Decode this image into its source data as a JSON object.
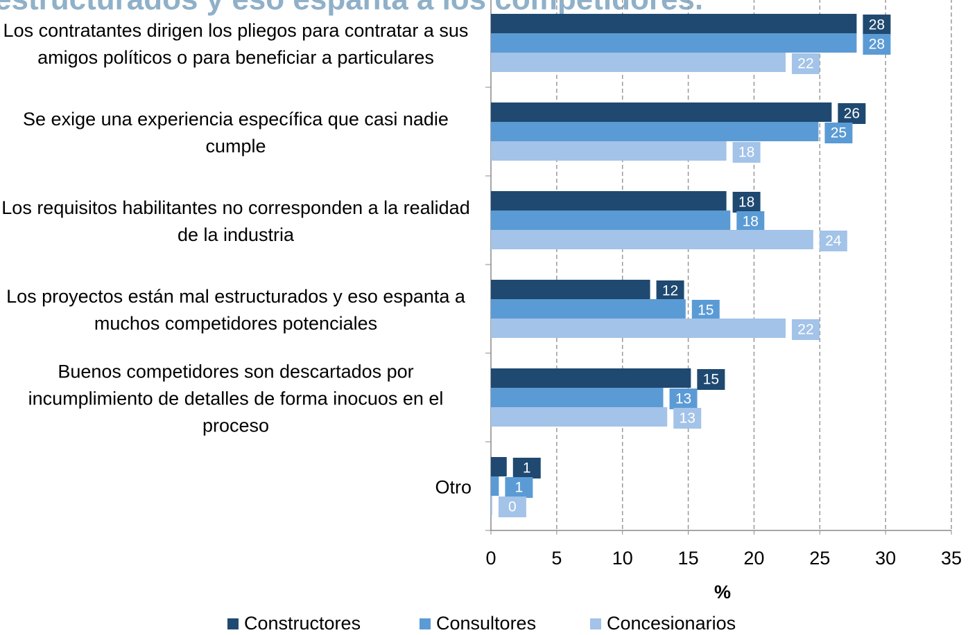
{
  "chart_data": {
    "type": "barh",
    "title": "estructurados y eso espanta a los competidores.",
    "categories": [
      "Los contratantes dirigen los pliegos para contratar a sus amigos políticos o para beneficiar a particulares",
      "Se exige una experiencia específica que casi nadie cumple",
      "Los requisitos habilitantes no corresponden a la realidad de la industria",
      "Los proyectos están mal estructurados y eso espanta a muchos competidores potenciales",
      "Buenos competidores son descartados por incumplimiento de detalles de forma inocuos en el proceso",
      "Otro"
    ],
    "series": [
      {
        "name": "Constructores",
        "color": "#1f4970",
        "values": [
          27.8,
          25.9,
          17.9,
          12.1,
          15.2,
          1.2
        ],
        "value_labels": [
          "28",
          "26",
          "18",
          "12",
          "15",
          "1"
        ]
      },
      {
        "name": "Consultores",
        "color": "#5b9bd5",
        "values": [
          27.8,
          24.9,
          18.2,
          14.8,
          13.1,
          0.6
        ],
        "value_labels": [
          "28",
          "25",
          "18",
          "15",
          "13",
          "1"
        ]
      },
      {
        "name": "Concesionarios",
        "color": "#a3c3e8",
        "values": [
          22.4,
          17.9,
          24.5,
          22.4,
          13.4,
          0.1
        ],
        "value_labels": [
          "22",
          "18",
          "24",
          "22",
          "13",
          "0"
        ]
      }
    ],
    "xlabel": "%",
    "xlim": [
      0,
      35
    ],
    "xticks": [
      0,
      5,
      10,
      15,
      20,
      25,
      30,
      35
    ],
    "grid": true,
    "legend": "bottom"
  }
}
